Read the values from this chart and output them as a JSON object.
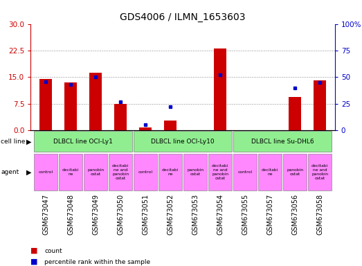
{
  "title": "GDS4006 / ILMN_1653603",
  "samples": [
    "GSM673047",
    "GSM673048",
    "GSM673049",
    "GSM673050",
    "GSM673051",
    "GSM673052",
    "GSM673053",
    "GSM673054",
    "GSM673055",
    "GSM673057",
    "GSM673056",
    "GSM673058"
  ],
  "counts": [
    14.5,
    13.5,
    16.2,
    7.5,
    0.8,
    2.8,
    0.0,
    23.0,
    0.0,
    0.0,
    9.5,
    14.0
  ],
  "percentiles": [
    46,
    43,
    50,
    27,
    5,
    22,
    0,
    52,
    0,
    0,
    40,
    45
  ],
  "ylim_left": [
    0,
    30
  ],
  "ylim_right": [
    0,
    100
  ],
  "yticks_left": [
    0,
    7.5,
    15,
    22.5,
    30
  ],
  "yticks_right": [
    0,
    25,
    50,
    75,
    100
  ],
  "bar_color": "#cc0000",
  "dot_color": "#0000cc",
  "cell_line_groups": [
    {
      "label": "DLBCL line OCI-Ly1",
      "start": 0,
      "end": 3,
      "color": "#90ee90"
    },
    {
      "label": "DLBCL line OCI-Ly10",
      "start": 4,
      "end": 7,
      "color": "#90ee90"
    },
    {
      "label": "DLBCL line Su-DHL6",
      "start": 8,
      "end": 11,
      "color": "#90ee90"
    }
  ],
  "agents": [
    "control",
    "decitabi\nne",
    "panobin\nostat",
    "decitabi\nne and\npanobin\nostat",
    "control",
    "decitabi\nne",
    "panobin\nostat",
    "decitabi\nne and\npanobin\nostat",
    "control",
    "decitabi\nne",
    "panobin\nostat",
    "decitabi\nne and\npanobin\nostat"
  ],
  "left_label_color": "#cc0000",
  "right_label_color": "#0000cc",
  "background_color": "#ffffff",
  "grid_color": "#888888",
  "title_fontsize": 10,
  "tick_fontsize": 7,
  "bar_width": 0.5,
  "sample_bg_color": "#d0d0d0",
  "agent_color": "#ff88ff",
  "cell_line_color": "#90ee90"
}
